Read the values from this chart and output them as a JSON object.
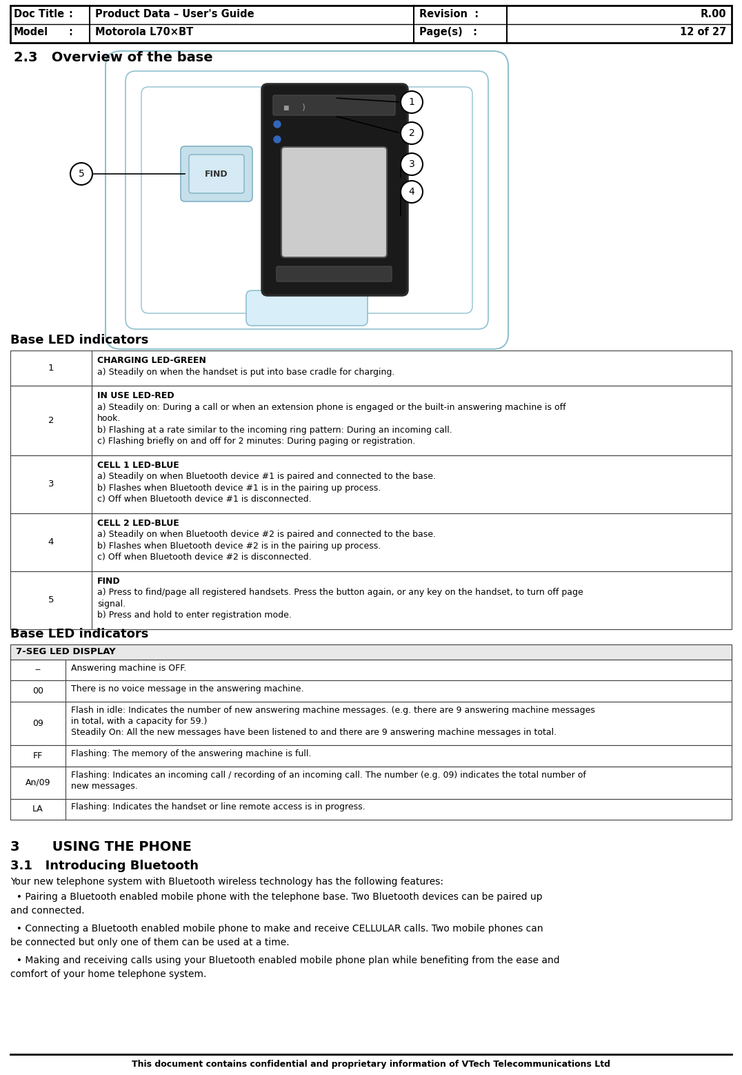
{
  "header": {
    "doc_title_label": "Doc Title",
    "colon1": ":",
    "doc_title_value": "Product Data – User's Guide",
    "model_label": "Model",
    "colon2": ":",
    "model_value": "Motorola L70×BT",
    "revision_label": "Revision  :",
    "revision_value": "R.00",
    "pages_label": "Page(s)   :",
    "pages_value": "12 of 27"
  },
  "section_23_title": "2.3   Overview of the base",
  "table1_title": "Base LED indicators",
  "table1_rows": [
    {
      "num": "1",
      "title": "CHARGING LED-GREEN",
      "lines": [
        "a) Steadily on when the handset is put into base cradle for charging."
      ]
    },
    {
      "num": "2",
      "title": "IN USE LED-RED",
      "lines": [
        "a) Steadily on: During a call or when an extension phone is engaged or the built-in answering machine is off",
        "hook.",
        "b) Flashing at a rate similar to the incoming ring pattern: During an incoming call.",
        "c) Flashing briefly on and off for 2 minutes: During paging or registration."
      ]
    },
    {
      "num": "3",
      "title": "CELL 1 LED-BLUE",
      "lines": [
        "a) Steadily on when Bluetooth device #1 is paired and connected to the base.",
        "b) Flashes when Bluetooth device #1 is in the pairing up process.",
        "c) Off when Bluetooth device #1 is disconnected."
      ]
    },
    {
      "num": "4",
      "title": "CELL 2 LED-BLUE",
      "lines": [
        "a) Steadily on when Bluetooth device #2 is paired and connected to the base.",
        "b) Flashes when Bluetooth device #2 is in the pairing up process.",
        "c) Off when Bluetooth device #2 is disconnected."
      ]
    },
    {
      "num": "5",
      "title": "FIND",
      "lines": [
        "a) Press to find/page all registered handsets. Press the button again, or any key on the handset, to turn off page",
        "signal.",
        "b) Press and hold to enter registration mode."
      ]
    }
  ],
  "table2_title": "Base LED indicators",
  "table2_header": "7-SEG LED DISPLAY",
  "table2_rows": [
    {
      "code": "--",
      "lines": [
        "Answering machine is OFF."
      ]
    },
    {
      "code": "00",
      "lines": [
        "There is no voice message in the answering machine."
      ]
    },
    {
      "code": "09",
      "lines": [
        "Flash in idle: Indicates the number of new answering machine messages. (e.g. there are 9 answering machine messages",
        "in total, with a capacity for 59.)",
        "Steadily On: All the new messages have been listened to and there are 9 answering machine messages in total."
      ]
    },
    {
      "code": "FF",
      "lines": [
        "Flashing: The memory of the answering machine is full."
      ]
    },
    {
      "code": "An/09",
      "lines": [
        "Flashing: Indicates an incoming call / recording of an incoming call. The number (e.g. 09) indicates the total number of",
        "new messages."
      ]
    },
    {
      "code": "LA",
      "lines": [
        "Flashing: Indicates the handset or line remote access is in progress."
      ]
    }
  ],
  "section3_title": "3       USING THE PHONE",
  "section31_title": "3.1   Introducing Bluetooth",
  "section31_body": "Your new telephone system with Bluetooth wireless technology has the following features:",
  "section31_bullets": [
    [
      "  • Pairing a Bluetooth enabled mobile phone with the telephone base. Two Bluetooth devices can be paired up",
      "and connected."
    ],
    [
      "  • Connecting a Bluetooth enabled mobile phone to make and receive CELLULAR calls. Two mobile phones can",
      "be connected but only one of them can be used at a time."
    ],
    [
      "  • Making and receiving calls using your Bluetooth enabled mobile phone plan while benefiting from the ease and",
      "comfort of your home telephone system."
    ]
  ],
  "footer_text": "This document contains confidential and proprietary information of VTech Telecommunications Ltd"
}
